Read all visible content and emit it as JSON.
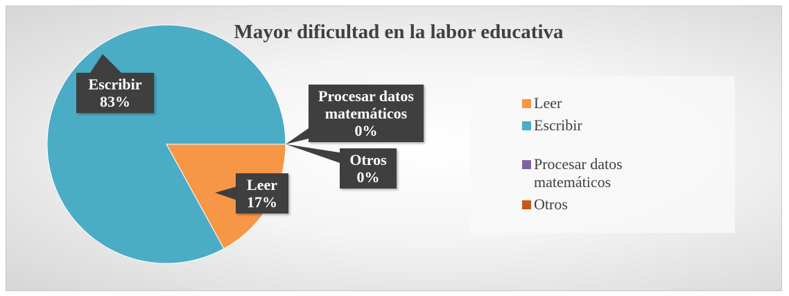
{
  "chart_data": {
    "type": "pie",
    "title": "Mayor dificultad en la labor educativa",
    "categories": [
      "Leer",
      "Escribir",
      "Procesar datos matemáticos",
      "Otros"
    ],
    "values": [
      17,
      83,
      0,
      0
    ],
    "value_labels": [
      "17%",
      "83%",
      "0%",
      "0%"
    ],
    "colors": [
      "#f79646",
      "#4bacc6",
      "#8064a2",
      "#c55a11"
    ],
    "legend": "right"
  }
}
